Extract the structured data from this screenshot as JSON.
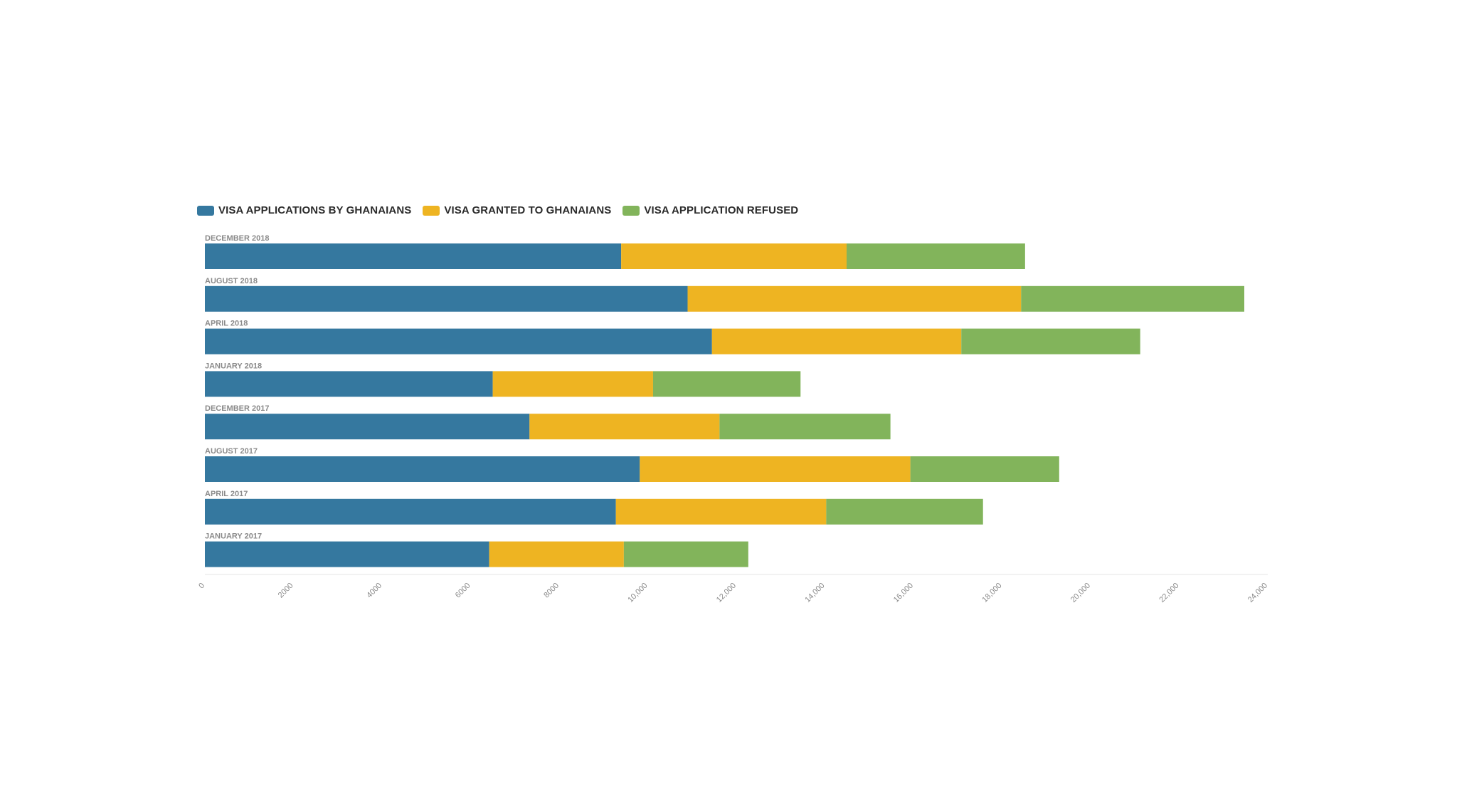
{
  "chart_data": {
    "type": "bar",
    "orientation": "horizontal",
    "stacked": true,
    "categories": [
      "DECEMBER 2018",
      "AUGUST 2018",
      "APRIL 2018",
      "JANUARY 2018",
      "DECEMBER 2017",
      "AUGUST 2017",
      "APRIL 2017",
      "JANUARY 2017"
    ],
    "series": [
      {
        "name": "VISA APPLICATIONS BY GHANAIANS",
        "color": "#35789f",
        "values": [
          9400,
          10900,
          11450,
          6500,
          7330,
          9820,
          9280,
          6420
        ]
      },
      {
        "name": "VISA GRANTED TO GHANAIANS",
        "color": "#eeb422",
        "values": [
          5090,
          7530,
          5630,
          3620,
          4290,
          6110,
          4750,
          3040
        ]
      },
      {
        "name": "VISA APPLICATION REFUSED",
        "color": "#82b45b",
        "values": [
          4030,
          5040,
          4040,
          3330,
          3860,
          3360,
          3540,
          2810
        ]
      }
    ],
    "xlim": [
      0,
      24000
    ],
    "x_ticks": [
      0,
      2000,
      4000,
      6000,
      8000,
      10000,
      12000,
      14000,
      16000,
      18000,
      20000,
      22000,
      24000
    ],
    "x_tick_labels": [
      "0",
      "2000",
      "4000",
      "6000",
      "8000",
      "10,000",
      "12,000",
      "14,000",
      "16,000",
      "18,000",
      "20,000",
      "22,000",
      "24,000"
    ],
    "legend_position": "top-left",
    "grid": false
  }
}
